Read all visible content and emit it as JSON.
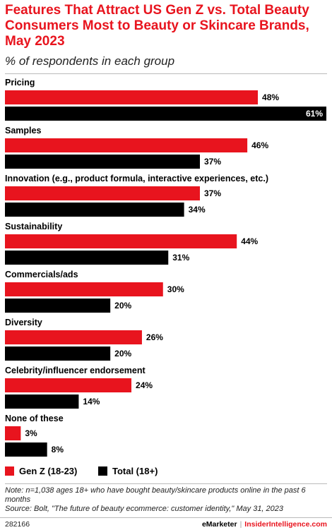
{
  "header": {
    "title": "Features That Attract US Gen Z vs. Total Beauty Consumers Most to Beauty or Skincare Brands, May 2023",
    "subtitle": "% of respondents in each group"
  },
  "colors": {
    "genz": "#e8141e",
    "total": "#000000"
  },
  "chart_data": {
    "type": "bar",
    "orientation": "horizontal",
    "categories": [
      "Pricing",
      "Samples",
      "Innovation (e.g., product formula, interactive experiences, etc.)",
      "Sustainability",
      "Commercials/ads",
      "Diversity",
      "Celebrity/influencer endorsement",
      "None of these"
    ],
    "series": [
      {
        "name": "Gen Z (18-23)",
        "values": [
          48,
          46,
          37,
          44,
          30,
          26,
          24,
          3
        ]
      },
      {
        "name": "Total (18+)",
        "values": [
          61,
          37,
          34,
          31,
          20,
          20,
          14,
          8
        ]
      }
    ],
    "value_suffix": "%",
    "xlim": [
      0,
      61
    ],
    "grid": false,
    "legend_position": "bottom-left"
  },
  "legend": {
    "genz": "Gen Z (18-23)",
    "total": "Total (18+)"
  },
  "note": "Note: n=1,038 ages 18+ who have bought beauty/skincare products online in the past 6 months",
  "source": "Source: Bolt, \"The future of beauty ecommerce: customer identity,\" May 31, 2023",
  "footer": {
    "id": "282166",
    "brand1": "eMarketer",
    "separator": "|",
    "brand2": "InsiderIntelligence.com"
  }
}
